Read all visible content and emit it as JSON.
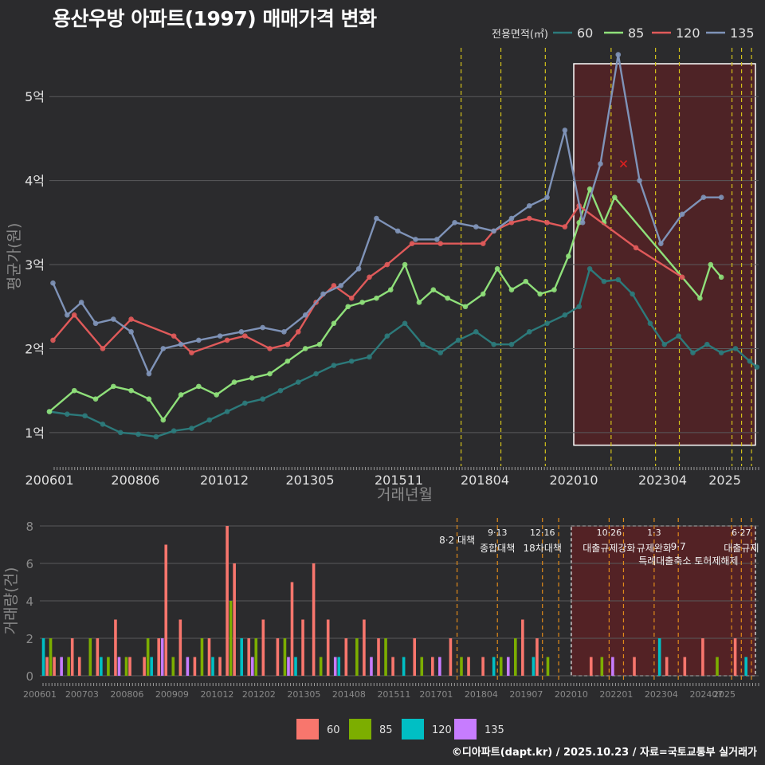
{
  "title": "용산우방 아파트(1997) 매매가격 변화",
  "footer": "©디아파트(dapt.kr) / 2025.10.23 / 자료=국토교통부 실거래가",
  "colors": {
    "background": "#2b2b2d",
    "grid": "#5a5a5c",
    "text": "#e0e0e0",
    "muted": "#8a8a8a",
    "vline": "#d4c21a",
    "vline_vol": "#e08a1a",
    "highlight_fill": "#5b2124",
    "s60": "#2c7a7b",
    "s85": "#8fe07a",
    "s120": "#e05a5a",
    "s135": "#7f93b8",
    "b60": "#f8766d",
    "b85": "#7cae00",
    "b120": "#00bfc4",
    "b135": "#c77cff"
  },
  "chart_data": [
    {
      "type": "line",
      "title": "용산우방 아파트(1997) 매매가격 변화",
      "xlabel": "거래년월",
      "ylabel": "평균가(원)",
      "xlim": [
        2006.0,
        2025.95
      ],
      "ylim": [
        0.6,
        5.6
      ],
      "yticks": [
        1,
        2,
        3,
        4,
        5
      ],
      "ytick_labels": [
        "1억",
        "2억",
        "3억",
        "4억",
        "5억"
      ],
      "xticks": [
        2006.0,
        2008.42,
        2010.92,
        2013.33,
        2015.83,
        2018.25,
        2020.75,
        2023.25,
        2025.0
      ],
      "xtick_labels": [
        "200601",
        "200806",
        "201012",
        "201305",
        "201511",
        "201804",
        "202010",
        "202304",
        "2025"
      ],
      "legend_title": "전용면적(㎡)",
      "legend_position": "top-right",
      "policy_lines": [
        2017.58,
        2018.7,
        2019.95,
        2021.8,
        2023.05,
        2023.72,
        2025.2,
        2025.47,
        2025.75
      ],
      "highlight_range": [
        2020.75,
        2025.95
      ],
      "highlight_y": [
        0.85,
        5.6
      ],
      "marker": {
        "x": 2022.15,
        "y": 4.2
      },
      "series": [
        {
          "name": "60",
          "color": "#2c7a7b",
          "x": [
            2006.0,
            2006.5,
            2007.0,
            2007.5,
            2008.0,
            2008.5,
            2009.0,
            2009.5,
            2010.0,
            2010.5,
            2011.0,
            2011.5,
            2012.0,
            2012.5,
            2013.0,
            2013.5,
            2014.0,
            2014.5,
            2015.0,
            2015.5,
            2016.0,
            2016.5,
            2017.0,
            2017.5,
            2018.0,
            2018.5,
            2019.0,
            2019.5,
            2020.0,
            2020.5,
            2020.9,
            2021.2,
            2021.6,
            2022.0,
            2022.4,
            2022.9,
            2023.3,
            2023.7,
            2024.1,
            2024.5,
            2024.9,
            2025.3,
            2025.7,
            2025.9
          ],
          "y": [
            1.25,
            1.22,
            1.2,
            1.1,
            1.0,
            0.98,
            0.95,
            1.02,
            1.05,
            1.15,
            1.25,
            1.35,
            1.4,
            1.5,
            1.6,
            1.7,
            1.8,
            1.85,
            1.9,
            2.15,
            2.3,
            2.05,
            1.95,
            2.1,
            2.2,
            2.05,
            2.05,
            2.2,
            2.3,
            2.4,
            2.5,
            2.95,
            2.8,
            2.82,
            2.65,
            2.3,
            2.05,
            2.15,
            1.95,
            2.05,
            1.95,
            2.0,
            1.85,
            1.78
          ]
        },
        {
          "name": "85",
          "color": "#8fe07a",
          "x": [
            2006.0,
            2006.7,
            2007.3,
            2007.8,
            2008.3,
            2008.8,
            2009.2,
            2009.7,
            2010.2,
            2010.7,
            2011.2,
            2011.7,
            2012.2,
            2012.7,
            2013.2,
            2013.6,
            2014.0,
            2014.4,
            2014.8,
            2015.2,
            2015.6,
            2016.0,
            2016.4,
            2016.8,
            2017.2,
            2017.7,
            2018.2,
            2018.6,
            2019.0,
            2019.4,
            2019.8,
            2020.2,
            2020.6,
            2020.9,
            2021.2,
            2021.6,
            2021.9,
            2024.3,
            2024.6,
            2024.9
          ],
          "y": [
            1.25,
            1.5,
            1.4,
            1.55,
            1.5,
            1.4,
            1.15,
            1.45,
            1.55,
            1.45,
            1.6,
            1.65,
            1.7,
            1.85,
            2.0,
            2.05,
            2.3,
            2.5,
            2.55,
            2.6,
            2.7,
            3.0,
            2.55,
            2.7,
            2.6,
            2.5,
            2.65,
            2.95,
            2.7,
            2.8,
            2.65,
            2.7,
            3.1,
            3.5,
            3.9,
            3.5,
            3.8,
            2.6,
            3.0,
            2.85
          ]
        },
        {
          "name": "120",
          "color": "#e05a5a",
          "x": [
            2006.1,
            2006.7,
            2007.5,
            2008.3,
            2009.5,
            2010.0,
            2011.0,
            2011.5,
            2012.2,
            2012.7,
            2013.0,
            2013.5,
            2014.0,
            2014.5,
            2015.0,
            2015.5,
            2016.2,
            2017.0,
            2018.2,
            2018.5,
            2019.0,
            2019.5,
            2020.0,
            2020.5,
            2020.9,
            2022.5,
            2023.8
          ],
          "y": [
            2.1,
            2.4,
            2.0,
            2.35,
            2.15,
            1.95,
            2.1,
            2.15,
            2.0,
            2.05,
            2.2,
            2.55,
            2.75,
            2.6,
            2.85,
            3.0,
            3.25,
            3.25,
            3.25,
            3.4,
            3.5,
            3.55,
            3.5,
            3.45,
            3.7,
            3.2,
            2.85
          ]
        },
        {
          "name": "135",
          "color": "#7f93b8",
          "x": [
            2006.1,
            2006.5,
            2006.9,
            2007.3,
            2007.8,
            2008.3,
            2008.8,
            2009.2,
            2009.7,
            2010.2,
            2010.8,
            2011.4,
            2012.0,
            2012.6,
            2013.2,
            2013.7,
            2014.2,
            2014.7,
            2015.2,
            2015.8,
            2016.3,
            2016.9,
            2017.4,
            2018.0,
            2018.5,
            2019.0,
            2019.5,
            2020.0,
            2020.5,
            2021.0,
            2021.5,
            2022.0,
            2022.6,
            2023.2,
            2023.8,
            2024.4,
            2024.9
          ],
          "y": [
            2.78,
            2.4,
            2.55,
            2.3,
            2.35,
            2.2,
            1.7,
            2.0,
            2.05,
            2.1,
            2.15,
            2.2,
            2.25,
            2.2,
            2.4,
            2.65,
            2.75,
            2.95,
            3.55,
            3.4,
            3.3,
            3.3,
            3.5,
            3.45,
            3.4,
            3.55,
            3.7,
            3.8,
            4.6,
            3.5,
            4.2,
            5.5,
            4.0,
            3.25,
            3.6,
            3.8,
            3.8
          ]
        }
      ]
    },
    {
      "type": "bar",
      "title": "",
      "xlabel": "",
      "ylabel": "거래량(건)",
      "xlim": [
        2006.0,
        2025.95
      ],
      "ylim": [
        0,
        8
      ],
      "yticks": [
        0,
        2,
        4,
        6,
        8
      ],
      "xticks": [
        2006.0,
        2007.17,
        2008.42,
        2009.67,
        2010.92,
        2012.08,
        2013.33,
        2014.58,
        2015.83,
        2017.0,
        2018.25,
        2019.5,
        2020.75,
        2022.0,
        2023.25,
        2024.5,
        2025.0
      ],
      "xtick_labels": [
        "200601",
        "200703",
        "200806",
        "200909",
        "201012",
        "201202",
        "201305",
        "201408",
        "201511",
        "201701",
        "201804",
        "201907",
        "202010",
        "202201",
        "202304",
        "202407",
        "2025"
      ],
      "legend_position": "bottom",
      "policy_lines": [
        2017.58,
        2018.7,
        2019.95,
        2020.4,
        2021.8,
        2022.2,
        2023.05,
        2023.72,
        2025.2,
        2025.47,
        2025.75
      ],
      "highlight_range": [
        2020.75,
        2025.95
      ],
      "annotations": [
        {
          "x": 2017.58,
          "line1": "",
          "line2": "8·2 대책"
        },
        {
          "x": 2018.7,
          "line1": "9·13",
          "line2": "종합대책"
        },
        {
          "x": 2019.95,
          "line1": "12·16",
          "line2": "18차대책"
        },
        {
          "x": 2021.8,
          "line1": "10·26",
          "line2": "대출규제강화"
        },
        {
          "x": 2023.05,
          "line1": "1·3",
          "line2": "규제완화"
        },
        {
          "x": 2023.72,
          "line1": "",
          "line2": "9·7"
        },
        {
          "x": 2024.0,
          "line1": "",
          "line2": "특례대출축소 토허제해제"
        },
        {
          "x": 2025.47,
          "line1": "6·27",
          "line2": "대출규제"
        }
      ],
      "series": [
        {
          "name": "60",
          "color": "#f8766d",
          "x": [
            2006.2,
            2006.4,
            2006.9,
            2007.1,
            2007.6,
            2008.1,
            2008.5,
            2008.9,
            2009.3,
            2009.5,
            2009.9,
            2010.3,
            2010.7,
            2011.0,
            2011.2,
            2011.4,
            2011.8,
            2012.2,
            2012.6,
            2013.0,
            2013.3,
            2013.6,
            2014.0,
            2014.5,
            2015.0,
            2015.4,
            2015.8,
            2016.4,
            2016.9,
            2017.4,
            2017.9,
            2018.3,
            2019.4,
            2019.8,
            2021.3,
            2022.5,
            2023.4,
            2023.9,
            2024.4,
            2025.3
          ],
          "y": [
            1,
            1,
            2,
            1,
            2,
            3,
            1,
            1,
            2,
            7,
            3,
            1,
            2,
            1,
            8,
            6,
            2,
            3,
            2,
            5,
            3,
            6,
            3,
            2,
            3,
            2,
            1,
            2,
            1,
            2,
            1,
            1,
            3,
            2,
            1,
            1,
            1,
            1,
            2,
            2
          ]
        },
        {
          "name": "85",
          "color": "#7cae00",
          "x": [
            2006.3,
            2006.8,
            2007.4,
            2007.9,
            2008.4,
            2009.0,
            2009.7,
            2010.5,
            2011.3,
            2012.0,
            2012.8,
            2013.8,
            2014.8,
            2015.6,
            2016.6,
            2017.7,
            2018.8,
            2019.2,
            2020.1,
            2021.6,
            2024.8
          ],
          "y": [
            2,
            1,
            2,
            1,
            1,
            2,
            1,
            2,
            4,
            2,
            2,
            1,
            2,
            2,
            1,
            1,
            1,
            2,
            1,
            1,
            1
          ]
        },
        {
          "name": "120",
          "color": "#00bfc4",
          "x": [
            2006.1,
            2007.7,
            2009.1,
            2010.8,
            2011.6,
            2013.1,
            2014.3,
            2016.1,
            2018.6,
            2019.7,
            2023.2,
            2025.6
          ],
          "y": [
            2,
            1,
            1,
            1,
            2,
            1,
            1,
            1,
            1,
            1,
            2,
            1
          ]
        },
        {
          "name": "135",
          "color": "#c77cff",
          "x": [
            2006.6,
            2008.2,
            2009.4,
            2010.1,
            2011.9,
            2012.9,
            2014.2,
            2015.2,
            2017.1,
            2019.0,
            2021.9
          ],
          "y": [
            1,
            1,
            2,
            1,
            1,
            1,
            1,
            1,
            1,
            1,
            1
          ]
        }
      ]
    }
  ]
}
